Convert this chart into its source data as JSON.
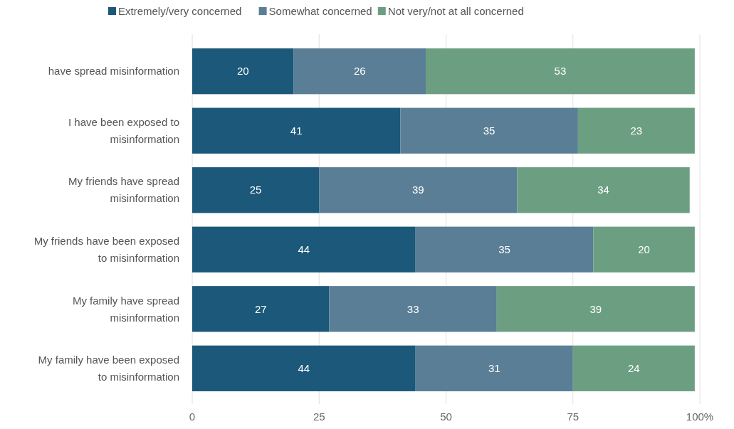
{
  "chart_data": {
    "type": "bar",
    "orientation": "horizontal",
    "stacked": true,
    "data_labels": true,
    "grid": "x",
    "legend": "top",
    "categories": [
      "have spread misinformation",
      "I have been exposed to misinformation",
      "My friends have spread misinformation",
      "My friends have been exposed to misinformation",
      "My family have spread misinformation",
      "My family have been exposed to misinformation"
    ],
    "series": [
      {
        "name": "Extremely/very concerned",
        "color": "#1b5879",
        "values": [
          20,
          41,
          25,
          44,
          27,
          44
        ]
      },
      {
        "name": "Somewhat concerned",
        "color": "#5a7e95",
        "values": [
          26,
          35,
          39,
          35,
          33,
          31
        ]
      },
      {
        "name": "Not very/not at all concerned",
        "color": "#6c9f82",
        "values": [
          53,
          23,
          34,
          20,
          39,
          24
        ]
      }
    ],
    "xlim": [
      0,
      100
    ],
    "xticks": [
      0,
      25,
      50,
      75,
      {
        "value": 100,
        "label": "100%"
      }
    ]
  }
}
